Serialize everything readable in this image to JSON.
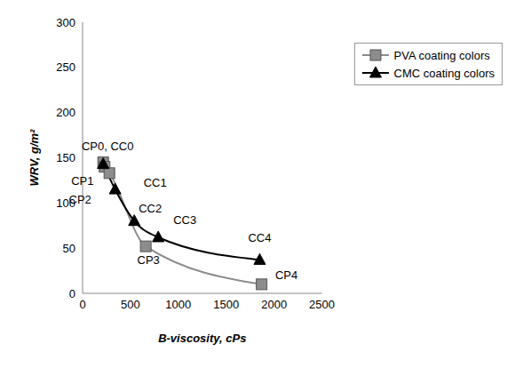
{
  "chart_data": {
    "type": "line",
    "x_label": "B-viscosity, cPs",
    "y_label": "WRV, g/m²",
    "xlim": [
      0,
      2500
    ],
    "xticks": [
      0,
      500,
      1000,
      1500,
      2000,
      2500
    ],
    "ylim": [
      0,
      300
    ],
    "yticks": [
      0,
      50,
      100,
      150,
      200,
      250,
      300
    ],
    "grid": false,
    "legend": "upper right",
    "series": [
      {
        "name": "PVA coating colors",
        "color": "#8c8c8c",
        "marker": "square",
        "line_style": "solid",
        "x": [
          215,
          230,
          280,
          660,
          1870
        ],
        "values": [
          145,
          140,
          133,
          52,
          10
        ]
      },
      {
        "name": "CMC coating colors",
        "color": "#000000",
        "marker": "triangle",
        "line_style": "solid",
        "x": [
          215,
          340,
          540,
          790,
          1850
        ],
        "values": [
          143,
          115,
          80,
          62,
          37
        ]
      }
    ],
    "annotations": [
      {
        "text": "CP0, CC0",
        "x": 215,
        "y": 145
      },
      {
        "text": "CP1",
        "x": 230,
        "y": 140
      },
      {
        "text": "CP2",
        "x": 280,
        "y": 133
      },
      {
        "text": "CC1",
        "x": 340,
        "y": 115
      },
      {
        "text": "CC2",
        "x": 540,
        "y": 80
      },
      {
        "text": "CC3",
        "x": 790,
        "y": 62
      },
      {
        "text": "CP3",
        "x": 660,
        "y": 52
      },
      {
        "text": "CC4",
        "x": 1850,
        "y": 37
      },
      {
        "text": "CP4",
        "x": 1870,
        "y": 10
      }
    ]
  }
}
